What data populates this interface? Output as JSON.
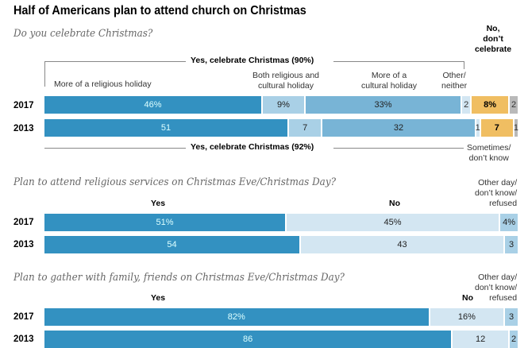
{
  "title": "Half of Americans plan to attend church on Christmas",
  "colors": {
    "dark_blue": "#3391c1",
    "mid_blue": "#78b4d6",
    "light_blue": "#a9d0e6",
    "pale_blue": "#d3e6f2",
    "orange": "#f0be62",
    "gray": "#b9b9b9"
  },
  "chart_data": [
    {
      "type": "bar",
      "subtype": "stacked-horizontal",
      "title": "Do you celebrate Christmas?",
      "categories": [
        "2017",
        "2013"
      ],
      "group_labels": {
        "top": "Yes, celebrate Christmas (90%)",
        "bottom": "Yes, celebrate Christmas (92%)",
        "no": "No, don't celebrate"
      },
      "series": [
        {
          "name": "More of a religious holiday",
          "values": [
            46,
            51
          ],
          "labels": [
            "46%",
            "51"
          ]
        },
        {
          "name": "Both religious and cultural holiday",
          "values": [
            9,
            7
          ],
          "labels": [
            "9%",
            "7"
          ]
        },
        {
          "name": "More of a cultural holiday",
          "values": [
            33,
            32
          ],
          "labels": [
            "33%",
            "32"
          ]
        },
        {
          "name": "Other/ neither",
          "values": [
            2,
            1
          ],
          "labels": [
            "2",
            "1"
          ]
        },
        {
          "name": "No, don't celebrate",
          "values": [
            8,
            7
          ],
          "labels": [
            "8%",
            "7"
          ]
        },
        {
          "name": "Sometimes/ don't know",
          "values": [
            2,
            1
          ],
          "labels": [
            "2",
            "1"
          ]
        }
      ]
    },
    {
      "type": "bar",
      "subtype": "stacked-horizontal",
      "title": "Plan to attend religious services on Christmas Eve/Christmas Day?",
      "categories": [
        "2017",
        "2013"
      ],
      "series": [
        {
          "name": "Yes",
          "values": [
            51,
            54
          ],
          "labels": [
            "51%",
            "54"
          ]
        },
        {
          "name": "No",
          "values": [
            45,
            43
          ],
          "labels": [
            "45%",
            "43"
          ]
        },
        {
          "name": "Other day/ don't know/ refused",
          "values": [
            4,
            3
          ],
          "labels": [
            "4%",
            "3"
          ]
        }
      ]
    },
    {
      "type": "bar",
      "subtype": "stacked-horizontal",
      "title": "Plan to gather with family, friends on Christmas Eve/Christmas Day?",
      "categories": [
        "2017",
        "2013"
      ],
      "series": [
        {
          "name": "Yes",
          "values": [
            82,
            86
          ],
          "labels": [
            "82%",
            "86"
          ]
        },
        {
          "name": "No",
          "values": [
            16,
            12
          ],
          "labels": [
            "16%",
            "12"
          ]
        },
        {
          "name": "Other day/ don't know/ refused",
          "values": [
            3,
            2
          ],
          "labels": [
            "3",
            "2"
          ]
        }
      ]
    }
  ]
}
